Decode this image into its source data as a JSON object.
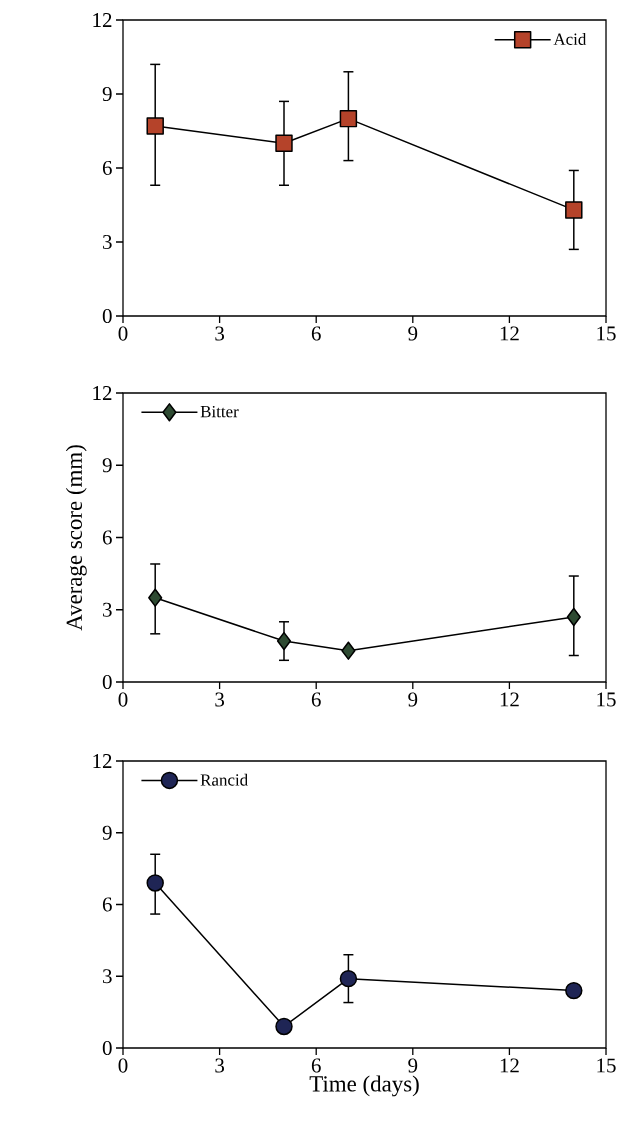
{
  "chart_data": [
    {
      "type": "line",
      "x": [
        1,
        5,
        7,
        14
      ],
      "series": [
        {
          "name": "Acid",
          "color": "#b5432a",
          "marker": "square",
          "values": [
            7.7,
            7.0,
            8.0,
            4.3
          ],
          "errors": [
            [
              5.3,
              10.2
            ],
            [
              5.3,
              8.7
            ],
            [
              6.3,
              9.9
            ],
            [
              2.7,
              5.9
            ]
          ]
        }
      ],
      "xlim": [
        0,
        15
      ],
      "xticks": [
        0,
        3,
        6,
        9,
        12,
        15
      ],
      "ylim": [
        0,
        12
      ],
      "yticks": [
        0,
        3,
        6,
        9,
        12
      ],
      "legend": "top right",
      "grid": false
    },
    {
      "type": "line",
      "x": [
        1,
        5,
        7,
        14
      ],
      "ylabel": "Average score (mm)",
      "series": [
        {
          "name": "Bitter",
          "color": "#2e4a32",
          "marker": "diamond",
          "values": [
            3.5,
            1.7,
            1.3,
            2.7
          ],
          "errors": [
            [
              2.0,
              4.9
            ],
            [
              0.9,
              2.5
            ],
            null,
            [
              1.1,
              4.4
            ]
          ]
        }
      ],
      "xlim": [
        0,
        15
      ],
      "xticks": [
        0,
        3,
        6,
        9,
        12,
        15
      ],
      "ylim": [
        0,
        12
      ],
      "yticks": [
        0,
        3,
        6,
        9,
        12
      ],
      "legend": "top left",
      "grid": false
    },
    {
      "type": "line",
      "x": [
        1,
        5,
        7,
        14
      ],
      "xlabel": "Time (days)",
      "series": [
        {
          "name": "Rancid",
          "color": "#1f2555",
          "marker": "circle",
          "values": [
            6.9,
            0.9,
            2.9,
            2.4
          ],
          "errors": [
            [
              5.6,
              8.1
            ],
            null,
            [
              1.9,
              3.9
            ],
            null
          ]
        }
      ],
      "xlim": [
        0,
        15
      ],
      "xticks": [
        0,
        3,
        6,
        9,
        12,
        15
      ],
      "ylim": [
        0,
        12
      ],
      "yticks": [
        0,
        3,
        6,
        9,
        12
      ],
      "legend": "top left",
      "grid": false
    }
  ]
}
